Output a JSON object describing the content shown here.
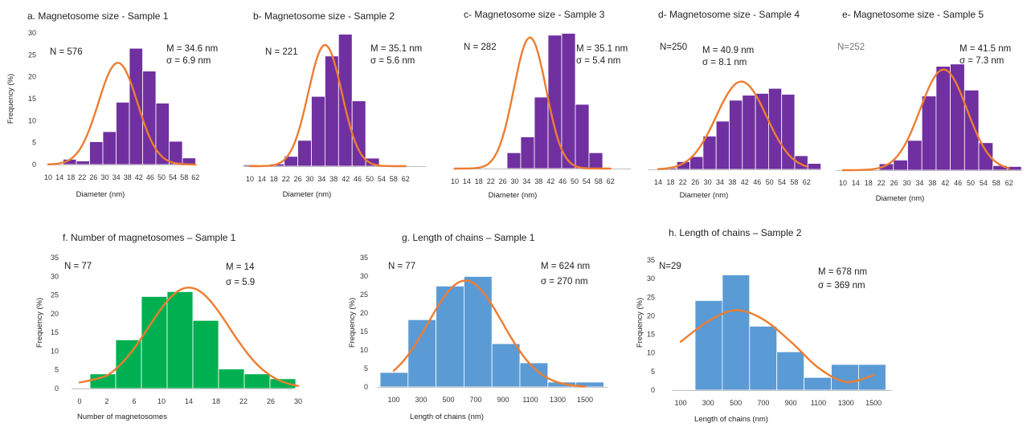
{
  "colors": {
    "purple": "#7030a0",
    "green": "#00b050",
    "blue": "#5b9bd5",
    "curve": "#ed7d31",
    "axis": "#bfbfbf"
  },
  "chart_data": [
    {
      "id": "a",
      "type": "bar",
      "title": "a. Magnetosome size - Sample 1",
      "xlabel": "Diameter (nm)",
      "ylabel": "Frequency (%)",
      "ylim": [
        0,
        30
      ],
      "yticks": [
        "0",
        "5",
        "10",
        "15",
        "20",
        "25",
        "30"
      ],
      "xticks": [
        "10",
        "14",
        "18",
        "22",
        "26",
        "30",
        "34",
        "38",
        "42",
        "46",
        "50",
        "54",
        "58",
        "62"
      ],
      "categories": [
        "10-14",
        "14-18",
        "18-22",
        "22-26",
        "26-30",
        "30-34",
        "34-38",
        "38-42",
        "42-46",
        "46-50",
        "50-54",
        "54-58",
        "58-62"
      ],
      "values": [
        0,
        1.2,
        0.8,
        5.2,
        7.5,
        14.2,
        26.5,
        21.3,
        14.0,
        5.3,
        1.5,
        0,
        0
      ],
      "annotations": {
        "n": "N = 576",
        "mean": "M = 34.6 nm",
        "sigma": "σ = 6.9 nm"
      },
      "fit": {
        "mean": 34.6,
        "sd": 6.9,
        "peak": 23.2
      }
    },
    {
      "id": "b",
      "type": "bar",
      "title": "b- Magnetosome size - Sample 2",
      "xlabel": "Diameter (nm)",
      "ylabel": "",
      "ylim": [
        0,
        30
      ],
      "yticks": [],
      "xticks": [
        "10",
        "14",
        "18",
        "22",
        "26",
        "30",
        "34",
        "38",
        "42",
        "46",
        "50",
        "54",
        "58",
        "62"
      ],
      "categories": [
        "10-14",
        "14-18",
        "18-22",
        "22-26",
        "26-30",
        "30-34",
        "34-38",
        "38-42",
        "42-46",
        "46-50",
        "50-54",
        "54-58",
        "58-62"
      ],
      "values": [
        0.3,
        0,
        0.5,
        2.2,
        5.8,
        15.7,
        24.8,
        29.7,
        14.7,
        1.8,
        0,
        0,
        0
      ],
      "annotations": {
        "n": "N = 221",
        "mean": "M = 35.1 nm",
        "sigma": "σ = 5.6 nm"
      },
      "fit": {
        "mean": 35.1,
        "sd": 5.6,
        "peak": 27.3
      }
    },
    {
      "id": "c",
      "type": "bar",
      "title": "c- Magnetosome size - Sample 3",
      "xlabel": "Diameter (nm)",
      "ylabel": "",
      "ylim": [
        0,
        30
      ],
      "yticks": [],
      "xticks": [
        "10",
        "14",
        "18",
        "22",
        "26",
        "30",
        "34",
        "38",
        "42",
        "46",
        "50",
        "54",
        "58",
        "62"
      ],
      "categories": [
        "10-14",
        "14-18",
        "18-22",
        "22-26",
        "26-30",
        "30-34",
        "34-38",
        "38-42",
        "42-46",
        "46-50",
        "50-54",
        "54-58",
        "58-62"
      ],
      "values": [
        0,
        0,
        0,
        0,
        3.5,
        7.0,
        15.8,
        29.5,
        29.9,
        14.2,
        3.5,
        0,
        0
      ],
      "annotations": {
        "n": "N = 282",
        "mean": "M = 35.1 nm",
        "sigma": "σ = 5.4 nm"
      },
      "fit": {
        "mean": 35.1,
        "sd": 5.4,
        "peak": 29.0
      }
    },
    {
      "id": "d",
      "type": "bar",
      "title": "d- Magnetosome size -  Sample 4",
      "xlabel": "Diameter (nm)",
      "ylabel": "",
      "ylim": [
        0,
        30
      ],
      "yticks": [],
      "xticks": [
        "14",
        "18",
        "22",
        "26",
        "30",
        "34",
        "38",
        "42",
        "46",
        "50",
        "54",
        "58",
        "62"
      ],
      "categories": [
        "14-18",
        "18-22",
        "22-26",
        "26-30",
        "30-34",
        "34-38",
        "38-42",
        "42-46",
        "46-50",
        "50-54",
        "54-58",
        "58-62"
      ],
      "values": [
        0.3,
        1.7,
        2.8,
        7.3,
        10.6,
        15.2,
        16.3,
        16.7,
        17.8,
        16.5,
        3.0,
        1.3
      ],
      "annotations": {
        "n": "N=250",
        "mean": "M = 40.9 nm",
        "sigma": "σ = 8.1 nm"
      },
      "fit": {
        "mean": 40.9,
        "sd": 8.1,
        "peak": 19.3
      }
    },
    {
      "id": "e",
      "type": "bar",
      "title": "e- Magnetosome size - Sample 5",
      "xlabel": "Diameter (nm)",
      "ylabel": "",
      "ylim": [
        0,
        30
      ],
      "yticks": [],
      "xticks": [
        "10",
        "14",
        "18",
        "22",
        "26",
        "30",
        "34",
        "38",
        "42",
        "46",
        "50",
        "54",
        "58",
        "62"
      ],
      "categories": [
        "10-14",
        "14-18",
        "18-22",
        "22-26",
        "26-30",
        "30-34",
        "34-38",
        "38-42",
        "42-46",
        "46-50",
        "50-54",
        "54-58",
        "58-62"
      ],
      "values": [
        0,
        0,
        0,
        1.4,
        2.2,
        6.5,
        16.2,
        22.7,
        23.2,
        17.5,
        6.0,
        1.0,
        0.8
      ],
      "annotations": {
        "n": "N=252",
        "mean": "M = 41.5 nm",
        "sigma": "σ = 7.3  nm"
      },
      "fit": {
        "mean": 41.5,
        "sd": 7.3,
        "peak": 22.0
      }
    },
    {
      "id": "f",
      "type": "bar",
      "title": "f. Number of magnetosomes – Sample 1",
      "xlabel": "Number  of magnetosomes",
      "ylabel": "Frequency (%)",
      "ylim": [
        0,
        35
      ],
      "yticks": [
        "0",
        "5",
        "10",
        "15",
        "20",
        "25",
        "30",
        "35"
      ],
      "xticks": [
        "0",
        "2",
        "6",
        "10",
        "14",
        "18",
        "22",
        "26",
        "30"
      ],
      "categories": [
        "2-6",
        "6-10",
        "10-14",
        "14-18",
        "18-22",
        "22-26",
        "26-30",
        "30-34"
      ],
      "values": [
        3.9,
        13.0,
        24.6,
        25.9,
        18.2,
        5.2,
        3.9,
        2.6
      ],
      "annotations": {
        "n": "N = 77",
        "mean": "M = 14",
        "sigma": "σ = 5.9"
      },
      "fit": {
        "mean": 14,
        "sd": 5.9,
        "peak": 27.0
      }
    },
    {
      "id": "g",
      "type": "bar",
      "title": "g. Length of chains – Sample 1",
      "xlabel": "Length  of chains (nm)",
      "ylabel": "Frequency (%)",
      "ylim": [
        0,
        35
      ],
      "yticks": [
        "0",
        "5",
        "10",
        "15",
        "20",
        "25",
        "30",
        "35"
      ],
      "xticks": [
        "100",
        "300",
        "500",
        "700",
        "900",
        "1100",
        "1300",
        "1500"
      ],
      "categories": [
        "0-200",
        "200-400",
        "400-600",
        "600-800",
        "800-1000",
        "1000-1200",
        "1200-1400",
        "1400-1600"
      ],
      "values": [
        3.9,
        18.2,
        27.3,
        29.9,
        11.7,
        6.5,
        1.3,
        1.3
      ],
      "annotations": {
        "n": "N = 77",
        "mean": "M = 624 nm",
        "sigma": "σ = 270  nm"
      },
      "fit": {
        "mean": 624,
        "sd": 270,
        "peak": 28.8
      }
    },
    {
      "id": "h",
      "type": "bar",
      "title": "h. Length of chains – Sample 2",
      "xlabel": "Length  of chains (nm)",
      "ylabel": "Frequency (%)",
      "ylim": [
        0,
        35
      ],
      "yticks": [
        "0",
        "5",
        "10",
        "15",
        "20",
        "25",
        "30",
        "35"
      ],
      "xticks": [
        "100",
        "300",
        "500",
        "700",
        "900",
        "1100",
        "1300",
        "1500"
      ],
      "categories": [
        "200-400",
        "400-600",
        "600-800",
        "800-1000",
        "1000-1200",
        "1200-1400",
        "1400-1600"
      ],
      "values": [
        24.1,
        31.0,
        17.2,
        10.3,
        3.4,
        6.9,
        6.9
      ],
      "annotations": {
        "n": "N=29",
        "mean": "M = 678 nm",
        "sigma": "σ = 369  nm"
      },
      "fit": {
        "type": "poly",
        "points": [
          [
            100,
            13
          ],
          [
            300,
            18.5
          ],
          [
            500,
            21.5
          ],
          [
            700,
            19
          ],
          [
            900,
            13
          ],
          [
            1100,
            6
          ],
          [
            1300,
            2.2
          ],
          [
            1500,
            4
          ]
        ]
      }
    }
  ]
}
